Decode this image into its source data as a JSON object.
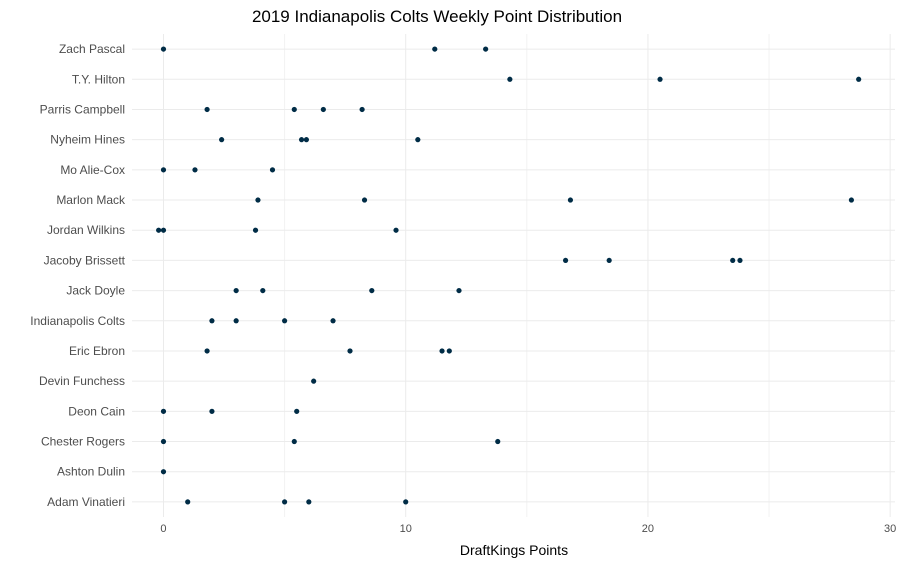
{
  "chart_data": {
    "type": "scatter",
    "title": "2019 Indianapolis Colts Weekly Point Distribution",
    "xlabel": "DraftKings Points",
    "ylabel": "",
    "xlim": [
      -1.3,
      30.2
    ],
    "x_ticks": [
      0,
      10,
      20,
      30
    ],
    "grid": true,
    "point_color": "#002c46",
    "categories": [
      "Zach Pascal",
      "T.Y. Hilton",
      "Parris Campbell",
      "Nyheim Hines",
      "Mo Alie-Cox",
      "Marlon Mack",
      "Jordan Wilkins",
      "Jacoby Brissett",
      "Jack Doyle",
      "Indianapolis Colts",
      "Eric Ebron",
      "Devin Funchess",
      "Deon Cain",
      "Chester Rogers",
      "Ashton Dulin",
      "Adam Vinatieri"
    ],
    "points": [
      {
        "player": "Zach Pascal",
        "values": [
          0,
          11.2,
          13.3
        ]
      },
      {
        "player": "T.Y. Hilton",
        "values": [
          14.3,
          20.5,
          28.7
        ]
      },
      {
        "player": "Parris Campbell",
        "values": [
          1.8,
          5.4,
          6.6,
          8.2
        ]
      },
      {
        "player": "Nyheim Hines",
        "values": [
          2.4,
          5.7,
          5.9,
          10.5
        ]
      },
      {
        "player": "Mo Alie-Cox",
        "values": [
          0,
          1.3,
          4.5
        ]
      },
      {
        "player": "Marlon Mack",
        "values": [
          3.9,
          8.3,
          16.8,
          28.4
        ]
      },
      {
        "player": "Jordan Wilkins",
        "values": [
          -0.2,
          0,
          3.8,
          9.6
        ]
      },
      {
        "player": "Jacoby Brissett",
        "values": [
          16.6,
          18.4,
          23.5,
          23.8
        ]
      },
      {
        "player": "Jack Doyle",
        "values": [
          3.0,
          4.1,
          8.6,
          12.2
        ]
      },
      {
        "player": "Indianapolis Colts",
        "values": [
          2.0,
          3.0,
          5.0,
          7.0
        ]
      },
      {
        "player": "Eric Ebron",
        "values": [
          1.8,
          7.7,
          11.5,
          11.8
        ]
      },
      {
        "player": "Devin Funchess",
        "values": [
          6.2
        ]
      },
      {
        "player": "Deon Cain",
        "values": [
          0,
          2.0,
          5.5
        ]
      },
      {
        "player": "Chester Rogers",
        "values": [
          0,
          5.4,
          13.8
        ]
      },
      {
        "player": "Ashton Dulin",
        "values": [
          0
        ]
      },
      {
        "player": "Adam Vinatieri",
        "values": [
          1.0,
          5.0,
          6.0,
          10.0
        ]
      }
    ]
  }
}
